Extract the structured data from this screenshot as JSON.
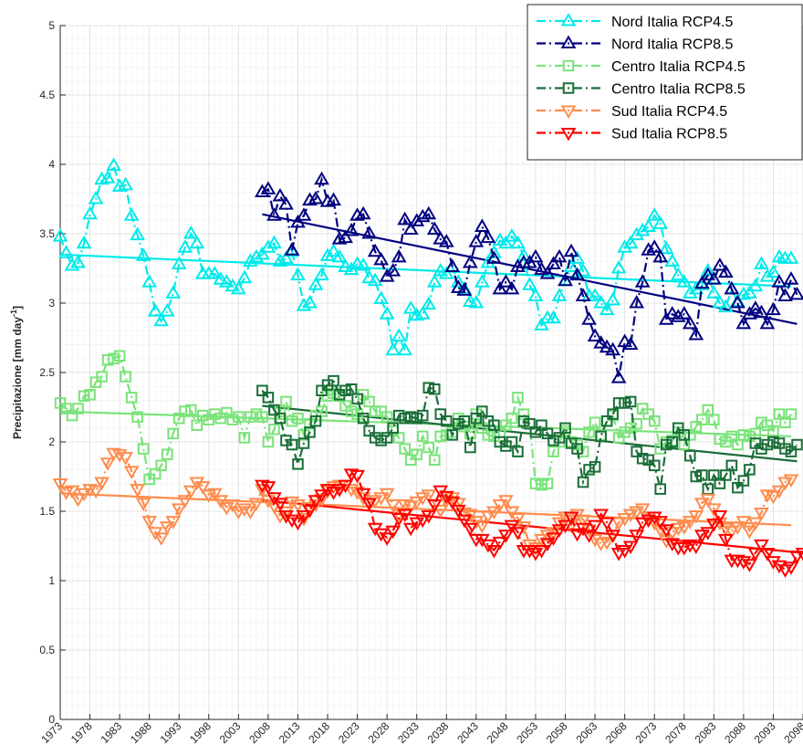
{
  "chart_data": {
    "type": "line",
    "ylabel": "Precipitazione [mm day",
    "ylabel_sup": "-1",
    "ylabel_close": "]",
    "xlim": [
      1973,
      2098
    ],
    "ylim": [
      0,
      5
    ],
    "yticks": [
      0,
      0.5,
      1,
      1.5,
      2,
      2.5,
      3,
      3.5,
      4,
      4.5,
      5
    ],
    "ytick_labels": [
      "0",
      "0.5",
      "1",
      "1.5",
      "2",
      "2.5",
      "3",
      "3.5",
      "4",
      "4.5",
      "5"
    ],
    "xticks": [
      1973,
      1978,
      1983,
      1988,
      1993,
      1998,
      2003,
      2008,
      2013,
      2018,
      2023,
      2028,
      2033,
      2038,
      2043,
      2048,
      2053,
      2058,
      2063,
      2068,
      2073,
      2078,
      2083,
      2088,
      2093,
      2098
    ],
    "xtick_labels": [
      "1973",
      "1978",
      "1983",
      "1988",
      "1993",
      "1998",
      "2003",
      "2008",
      "2013",
      "2018",
      "2023",
      "2028",
      "2033",
      "2038",
      "2043",
      "2048",
      "2053",
      "2058",
      "2063",
      "2068",
      "2073",
      "2078",
      "2083",
      "2088",
      "2093",
      "2098"
    ],
    "grid": true,
    "legend_position": "top-right",
    "series": [
      {
        "name": "Nord Italia RCP4.5",
        "color": "#00eaea",
        "marker": "triangle-up",
        "x_start": 1973,
        "values": [
          3.48,
          3.36,
          3.27,
          3.29,
          3.43,
          3.64,
          3.75,
          3.89,
          3.9,
          3.99,
          3.84,
          3.85,
          3.63,
          3.49,
          3.34,
          3.15,
          2.94,
          2.87,
          2.94,
          3.07,
          3.28,
          3.4,
          3.5,
          3.43,
          3.21,
          3.21,
          3.21,
          3.17,
          3.15,
          3.12,
          3.1,
          3.18,
          3.3,
          3.33,
          3.35,
          3.4,
          3.43,
          3.3,
          3.32,
          3.37,
          3.2,
          2.98,
          3.0,
          3.13,
          3.2,
          3.34,
          3.37,
          3.33,
          3.26,
          3.24,
          3.28,
          3.27,
          3.18,
          3.16,
          3.03,
          2.92,
          2.66,
          2.76,
          2.66,
          2.96,
          2.91,
          2.92,
          2.99,
          3.15,
          3.23,
          3.21,
          3.26,
          3.15,
          3.1,
          3.01,
          3.0,
          3.15,
          3.29,
          3.36,
          3.45,
          3.43,
          3.48,
          3.43,
          3.34,
          3.13,
          3.05,
          2.84,
          2.89,
          2.89,
          3.05,
          3.16,
          3.26,
          3.32,
          3.23,
          3.05,
          3.05,
          3.0,
          2.95,
          3.02,
          3.25,
          3.4,
          3.43,
          3.49,
          3.52,
          3.55,
          3.63,
          3.57,
          3.39,
          3.3,
          3.2,
          3.15,
          3.07,
          3.1,
          3.13,
          3.23,
          3.07,
          3.0,
          2.97,
          3.1,
          3.01,
          3.06,
          3.07,
          3.12,
          3.28,
          3.19,
          3.22,
          3.33,
          3.32,
          3.32
        ],
        "trend": [
          3.35,
          3.12
        ]
      },
      {
        "name": "Nord Italia RCP8.5",
        "color": "#000080",
        "marker": "triangle-up",
        "x_start": 2007,
        "values": [
          3.8,
          3.82,
          3.63,
          3.77,
          3.71,
          3.38,
          3.58,
          3.63,
          3.74,
          3.75,
          3.89,
          3.73,
          3.74,
          3.46,
          3.47,
          3.52,
          3.63,
          3.64,
          3.5,
          3.37,
          3.31,
          3.19,
          3.23,
          3.33,
          3.6,
          3.53,
          3.59,
          3.62,
          3.64,
          3.53,
          3.46,
          3.44,
          3.26,
          3.11,
          3.09,
          3.29,
          3.44,
          3.55,
          3.47,
          3.32,
          3.1,
          3.15,
          3.1,
          3.26,
          3.29,
          3.29,
          3.33,
          3.24,
          3.21,
          3.28,
          3.33,
          3.16,
          3.37,
          3.2,
          3.05,
          2.88,
          2.76,
          2.71,
          2.68,
          2.66,
          2.46,
          2.72,
          2.7,
          3.0,
          3.15,
          3.38,
          3.4,
          3.33,
          2.88,
          2.92,
          2.9,
          2.92,
          2.85,
          2.77,
          3.14,
          3.2,
          3.17,
          3.27,
          3.22,
          3.1,
          3.0,
          2.85,
          2.92,
          2.96,
          2.93,
          2.85,
          2.95,
          3.15,
          3.05,
          3.17,
          3.06
        ],
        "trend": [
          3.64,
          2.85
        ]
      },
      {
        "name": "Centro Italia RCP4.5",
        "color": "#7ae37a",
        "marker": "square",
        "x_start": 1973,
        "values": [
          2.28,
          2.24,
          2.19,
          2.24,
          2.33,
          2.34,
          2.43,
          2.47,
          2.59,
          2.6,
          2.62,
          2.47,
          2.32,
          2.18,
          1.95,
          1.73,
          1.77,
          1.83,
          1.91,
          2.06,
          2.17,
          2.22,
          2.23,
          2.12,
          2.19,
          2.16,
          2.2,
          2.17,
          2.21,
          2.16,
          2.18,
          2.03,
          2.18,
          2.2,
          2.18,
          2.0,
          2.09,
          2.22,
          2.29,
          2.15,
          2.17,
          2.05,
          2.13,
          2.19,
          2.22,
          2.33,
          2.35,
          2.33,
          2.26,
          2.22,
          2.2,
          2.34,
          2.29,
          2.22,
          2.22,
          2.18,
          2.08,
          2.03,
          1.95,
          1.87,
          1.91,
          2.04,
          1.96,
          1.87,
          2.04,
          2.05,
          2.07,
          2.17,
          2.11,
          2.06,
          2.2,
          2.1,
          2.05,
          2.04,
          2.07,
          2.12,
          2.17,
          2.32,
          2.2,
          2.13,
          1.7,
          1.69,
          1.7,
          1.93,
          2.0,
          2.08,
          2.0,
          1.98,
          1.93,
          2.07,
          2.14,
          2.05,
          2.15,
          2.19,
          2.03,
          2.07,
          2.1,
          2.13,
          2.24,
          2.2,
          2.15,
          1.95,
          2.0,
          2.01,
          2.07,
          1.98,
          2.05,
          2.11,
          2.16,
          2.23,
          2.16,
          2.02,
          2.0,
          2.04,
          1.98,
          2.05,
          2.04,
          2.06,
          2.14,
          2.12,
          2.08,
          2.2,
          2.14,
          2.2
        ],
        "trend": [
          2.22,
          2.04
        ]
      },
      {
        "name": "Centro Italia RCP8.5",
        "color": "#1a6e38",
        "marker": "square",
        "x_start": 2007,
        "values": [
          2.37,
          2.32,
          2.23,
          2.17,
          2.01,
          1.98,
          1.84,
          1.99,
          2.07,
          2.15,
          2.37,
          2.41,
          2.44,
          2.34,
          2.37,
          2.38,
          2.31,
          2.17,
          2.08,
          2.03,
          2.01,
          2.03,
          2.1,
          2.19,
          2.17,
          2.18,
          2.17,
          2.19,
          2.39,
          2.38,
          2.2,
          2.15,
          2.05,
          2.13,
          2.15,
          1.96,
          2.17,
          2.22,
          2.15,
          2.12,
          2.0,
          1.97,
          2.0,
          1.93,
          2.15,
          2.13,
          2.07,
          2.12,
          2.06,
          2.01,
          2.03,
          2.1,
          1.99,
          1.95,
          1.71,
          1.8,
          1.82,
          2.04,
          2.15,
          2.2,
          2.28,
          2.28,
          2.29,
          1.93,
          1.88,
          1.87,
          1.83,
          1.66,
          1.98,
          2.0,
          2.1,
          2.05,
          1.9,
          1.75,
          1.76,
          1.66,
          1.76,
          1.7,
          1.76,
          1.83,
          1.67,
          1.72,
          1.8,
          1.99,
          1.95,
          1.98,
          2.0,
          1.99,
          1.95,
          1.93,
          1.98
        ],
        "trend": [
          2.26,
          1.86
        ]
      },
      {
        "name": "Sud Italia RCP4.5",
        "color": "#ff8c4d",
        "marker": "triangle-down",
        "x_start": 1973,
        "values": [
          1.7,
          1.64,
          1.65,
          1.59,
          1.63,
          1.66,
          1.65,
          1.71,
          1.85,
          1.92,
          1.91,
          1.89,
          1.79,
          1.66,
          1.56,
          1.43,
          1.35,
          1.31,
          1.39,
          1.43,
          1.52,
          1.58,
          1.65,
          1.71,
          1.68,
          1.62,
          1.63,
          1.58,
          1.53,
          1.55,
          1.5,
          1.52,
          1.5,
          1.56,
          1.66,
          1.58,
          1.54,
          1.47,
          1.5,
          1.57,
          1.55,
          1.45,
          1.53,
          1.55,
          1.59,
          1.65,
          1.68,
          1.69,
          1.69,
          1.66,
          1.64,
          1.6,
          1.56,
          1.58,
          1.6,
          1.63,
          1.55,
          1.48,
          1.55,
          1.54,
          1.57,
          1.6,
          1.62,
          1.55,
          1.51,
          1.58,
          1.6,
          1.56,
          1.49,
          1.48,
          1.43,
          1.4,
          1.47,
          1.5,
          1.55,
          1.58,
          1.5,
          1.45,
          1.39,
          1.26,
          1.24,
          1.3,
          1.33,
          1.35,
          1.42,
          1.46,
          1.4,
          1.48,
          1.44,
          1.37,
          1.3,
          1.27,
          1.28,
          1.33,
          1.42,
          1.45,
          1.48,
          1.5,
          1.52,
          1.46,
          1.42,
          1.37,
          1.29,
          1.35,
          1.38,
          1.39,
          1.43,
          1.47,
          1.56,
          1.59,
          1.52,
          1.42,
          1.38,
          1.36,
          1.39,
          1.43,
          1.36,
          1.42,
          1.49,
          1.62,
          1.61,
          1.65,
          1.71,
          1.73
        ],
        "trend": [
          1.63,
          1.4
        ]
      },
      {
        "name": "Sud Italia RCP8.5",
        "color": "#ff0000",
        "marker": "triangle-down",
        "x_start": 2007,
        "values": [
          1.69,
          1.68,
          1.6,
          1.56,
          1.47,
          1.44,
          1.42,
          1.47,
          1.51,
          1.58,
          1.62,
          1.66,
          1.64,
          1.66,
          1.69,
          1.77,
          1.76,
          1.63,
          1.56,
          1.38,
          1.34,
          1.31,
          1.36,
          1.45,
          1.48,
          1.38,
          1.42,
          1.44,
          1.47,
          1.55,
          1.65,
          1.61,
          1.57,
          1.51,
          1.44,
          1.38,
          1.3,
          1.3,
          1.26,
          1.22,
          1.28,
          1.33,
          1.4,
          1.35,
          1.22,
          1.22,
          1.2,
          1.22,
          1.27,
          1.31,
          1.37,
          1.4,
          1.46,
          1.34,
          1.38,
          1.33,
          1.4,
          1.48,
          1.42,
          1.33,
          1.2,
          1.22,
          1.25,
          1.33,
          1.42,
          1.44,
          1.46,
          1.43,
          1.37,
          1.27,
          1.24,
          1.24,
          1.26,
          1.25,
          1.33,
          1.35,
          1.41,
          1.47,
          1.3,
          1.15,
          1.15,
          1.14,
          1.12,
          1.2,
          1.26,
          1.2,
          1.14,
          1.11,
          1.08,
          1.1,
          1.18,
          1.2,
          1.22,
          1.21,
          1.2
        ],
        "trend": [
          1.58,
          1.2
        ]
      }
    ]
  }
}
